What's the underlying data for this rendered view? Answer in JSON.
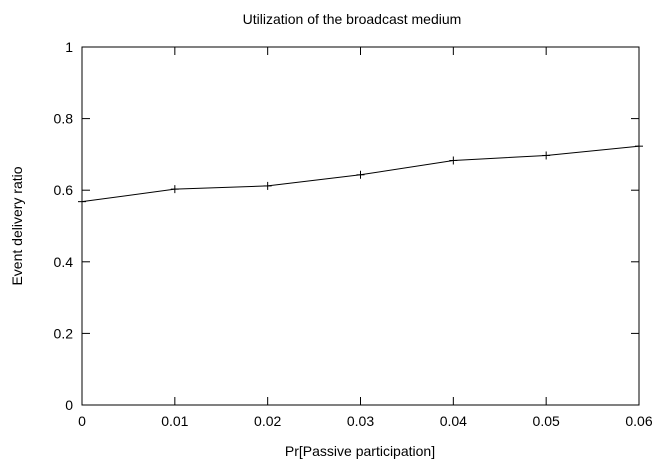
{
  "chart_data": {
    "type": "line",
    "title": "Utilization of the broadcast medium",
    "xlabel": "Pr[Passive participation]",
    "ylabel": "Event delivery ratio",
    "xlim": [
      0,
      0.06
    ],
    "ylim": [
      0,
      1
    ],
    "x_ticks": [
      "0",
      "0.01",
      "0.02",
      "0.03",
      "0.04",
      "0.05",
      "0.06"
    ],
    "y_ticks": [
      "0",
      "0.2",
      "0.4",
      "0.6",
      "0.8",
      "1"
    ],
    "grid": false,
    "legend": "none",
    "series": [
      {
        "x": [
          0,
          0.01,
          0.02,
          0.03,
          0.04,
          0.05,
          0.06
        ],
        "values": [
          0.568,
          0.603,
          0.612,
          0.643,
          0.683,
          0.697,
          0.723
        ],
        "color": "#000000",
        "marker": "plus"
      }
    ]
  }
}
